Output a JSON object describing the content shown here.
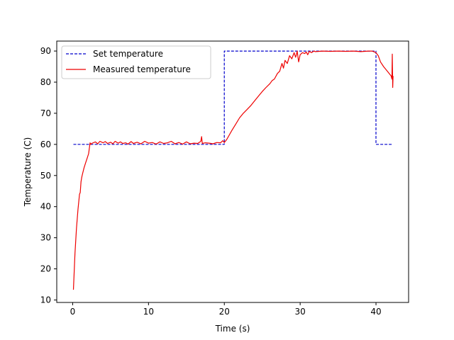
{
  "chart_data": {
    "type": "line",
    "title": "",
    "xlabel": "Time (s)",
    "ylabel": "Temperature (C)",
    "xlim": [
      -2.1,
      44.3
    ],
    "ylim": [
      9.2,
      93.2
    ],
    "xticks": [
      0,
      10,
      20,
      30,
      40
    ],
    "yticks": [
      10,
      20,
      30,
      40,
      50,
      60,
      70,
      80,
      90
    ],
    "grid": false,
    "legend_position": "upper left",
    "series": [
      {
        "name": "Set temperature",
        "color": "#0000cc",
        "style": "dashed",
        "x": [
          0.1,
          20.0,
          20.0,
          40.0,
          40.0,
          42.2
        ],
        "y": [
          60,
          60,
          90,
          90,
          60,
          60
        ]
      },
      {
        "name": "Measured temperature",
        "color": "#ee0000",
        "style": "solid",
        "x": [
          0.1,
          0.3,
          0.5,
          0.7,
          0.9,
          1.0,
          1.1,
          1.2,
          1.3,
          1.5,
          1.7,
          1.9,
          2.1,
          2.3,
          2.4,
          2.5,
          3.0,
          3.3,
          3.6,
          4.0,
          4.3,
          4.6,
          5.0,
          5.3,
          5.6,
          6.0,
          6.3,
          6.6,
          7.0,
          7.3,
          7.7,
          8.0,
          8.5,
          9.0,
          9.5,
          10.0,
          10.5,
          11.0,
          11.5,
          12.0,
          12.5,
          13.0,
          13.5,
          14.0,
          14.5,
          15.0,
          15.5,
          16.0,
          16.5,
          16.9,
          17.0,
          17.1,
          17.5,
          18.0,
          18.5,
          19.0,
          19.5,
          19.8,
          20.0,
          20.3,
          20.6,
          21.0,
          21.5,
          22.0,
          22.5,
          23.0,
          23.5,
          24.0,
          24.5,
          25.0,
          25.5,
          26.0,
          26.3,
          26.6,
          27.0,
          27.3,
          27.6,
          27.8,
          28.0,
          28.3,
          28.6,
          28.9,
          29.2,
          29.4,
          29.5,
          29.6,
          29.8,
          30.0,
          30.3,
          30.6,
          30.8,
          31.0,
          31.2,
          31.5,
          31.8,
          32.0,
          33.0,
          34.0,
          35.0,
          36.0,
          37.0,
          38.0,
          39.0,
          39.5,
          40.0,
          40.3,
          40.6,
          41.0,
          41.5,
          42.0,
          42.1,
          42.15,
          42.2,
          42.25
        ],
        "y": [
          13.3,
          25.0,
          33.0,
          39.0,
          44.0,
          44.5,
          48.0,
          49.5,
          50.5,
          52.5,
          54.0,
          55.5,
          57.0,
          60.5,
          60.0,
          60.3,
          60.8,
          60.2,
          61.0,
          60.5,
          60.9,
          60.3,
          60.7,
          60.2,
          61.0,
          60.4,
          60.8,
          60.3,
          60.5,
          60.1,
          60.9,
          60.3,
          60.7,
          60.2,
          61.0,
          60.4,
          60.6,
          60.1,
          60.8,
          60.3,
          60.5,
          61.0,
          60.2,
          60.6,
          60.1,
          60.8,
          60.2,
          60.4,
          60.3,
          61.0,
          62.5,
          60.3,
          60.5,
          60.4,
          60.2,
          60.6,
          60.5,
          61.2,
          60.6,
          61.5,
          62.8,
          64.5,
          66.5,
          68.5,
          70.0,
          71.2,
          72.5,
          74.0,
          75.5,
          77.0,
          78.3,
          79.5,
          80.5,
          81.0,
          82.8,
          83.5,
          86.0,
          84.5,
          87.0,
          86.0,
          88.5,
          87.5,
          89.5,
          88.0,
          88.8,
          90.0,
          86.5,
          88.8,
          89.5,
          89.2,
          89.7,
          88.8,
          89.9,
          89.5,
          90.0,
          89.8,
          90.0,
          89.9,
          90.0,
          89.9,
          90.0,
          89.8,
          90.0,
          90.0,
          89.5,
          88.5,
          86.5,
          85.0,
          83.5,
          82.0,
          81.0,
          89.0,
          78.3,
          82.0
        ]
      }
    ]
  }
}
